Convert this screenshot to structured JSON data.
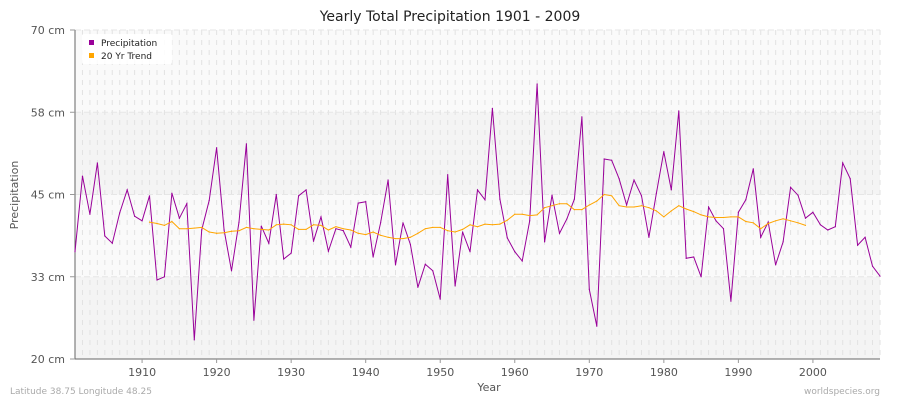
{
  "chart_data": {
    "type": "line",
    "title": "Yearly Total Precipitation 1901 - 2009",
    "xlabel": "Year",
    "ylabel": "Precipitation",
    "xlim": [
      1901,
      2009
    ],
    "ylim": [
      20,
      70
    ],
    "y_ticks": [
      20,
      32.5,
      45,
      57.5,
      70
    ],
    "y_tick_labels": [
      "20 cm",
      "33 cm",
      "45 cm",
      "58 cm",
      "70 cm"
    ],
    "x_ticks": [
      1910,
      1920,
      1930,
      1940,
      1950,
      1960,
      1970,
      1980,
      1990,
      2000
    ],
    "x_tick_labels": [
      "1910",
      "1920",
      "1930",
      "1940",
      "1950",
      "1960",
      "1970",
      "1980",
      "1990",
      "2000"
    ],
    "grid": true,
    "legend_position": "top-left",
    "series": [
      {
        "name": "Precipitation",
        "color": "#990099",
        "x_start": 1901,
        "values": [
          36.3,
          47.8,
          42.0,
          49.8,
          38.7,
          37.6,
          42.2,
          45.7,
          41.7,
          41.0,
          44.8,
          32.0,
          32.5,
          45.2,
          41.4,
          43.6,
          22.9,
          39.6,
          44.1,
          52.1,
          39.6,
          33.4,
          40.8,
          52.7,
          25.9,
          40.2,
          37.6,
          45.0,
          35.2,
          36.1,
          44.8,
          45.7,
          37.9,
          41.6,
          36.4,
          39.8,
          39.5,
          37.0,
          43.7,
          43.9,
          35.5,
          40.7,
          47.2,
          34.3,
          40.7,
          37.4,
          30.9,
          34.4,
          33.4,
          29.1,
          48.0,
          31.1,
          39.3,
          36.3,
          45.7,
          44.2,
          58.1,
          44.3,
          38.4,
          36.3,
          34.9,
          41.0,
          61.8,
          37.8,
          44.9,
          39.1,
          41.3,
          44.3,
          56.8,
          30.6,
          25.0,
          50.4,
          50.2,
          47.4,
          43.4,
          47.2,
          44.8,
          38.5,
          45.2,
          51.5,
          45.7,
          57.7,
          35.3,
          35.5,
          32.5,
          43.1,
          41.0,
          39.8,
          28.8,
          42.3,
          44.2,
          48.9,
          38.5,
          40.8,
          34.3,
          37.8,
          46.1,
          44.9,
          41.4,
          42.3,
          40.4,
          39.6,
          40.1,
          49.8,
          47.4,
          37.3,
          38.5,
          34.1,
          32.6
        ]
      },
      {
        "name": "20 Yr Trend",
        "color": "#ffa500",
        "x_start": 1911,
        "values": [
          40.8,
          40.6,
          40.3,
          40.9,
          39.8,
          39.8,
          39.9,
          40.0,
          39.3,
          39.1,
          39.2,
          39.4,
          39.5,
          40.0,
          39.8,
          39.7,
          39.6,
          40.4,
          40.5,
          40.4,
          39.7,
          39.7,
          40.4,
          40.3,
          39.6,
          40.1,
          39.8,
          39.6,
          39.1,
          38.9,
          39.3,
          38.8,
          38.5,
          38.3,
          38.3,
          38.5,
          39.1,
          39.8,
          40.0,
          40.0,
          39.5,
          39.3,
          39.7,
          40.4,
          40.1,
          40.5,
          40.4,
          40.5,
          41.1,
          42.0,
          42.0,
          41.8,
          41.9,
          43.0,
          43.3,
          43.6,
          43.6,
          42.7,
          42.7,
          43.4,
          44.0,
          45.0,
          44.8,
          43.3,
          43.1,
          43.1,
          43.3,
          43.0,
          42.5,
          41.6,
          42.5,
          43.3,
          42.8,
          42.4,
          41.9,
          41.6,
          41.5,
          41.5,
          41.6,
          41.6,
          40.9,
          40.7,
          39.8,
          40.6,
          41.0,
          41.3,
          41.0,
          40.7,
          40.3
        ]
      }
    ]
  },
  "footer": {
    "location": "Latitude 38.75 Longitude 48.25",
    "source": "worldspecies.org"
  }
}
